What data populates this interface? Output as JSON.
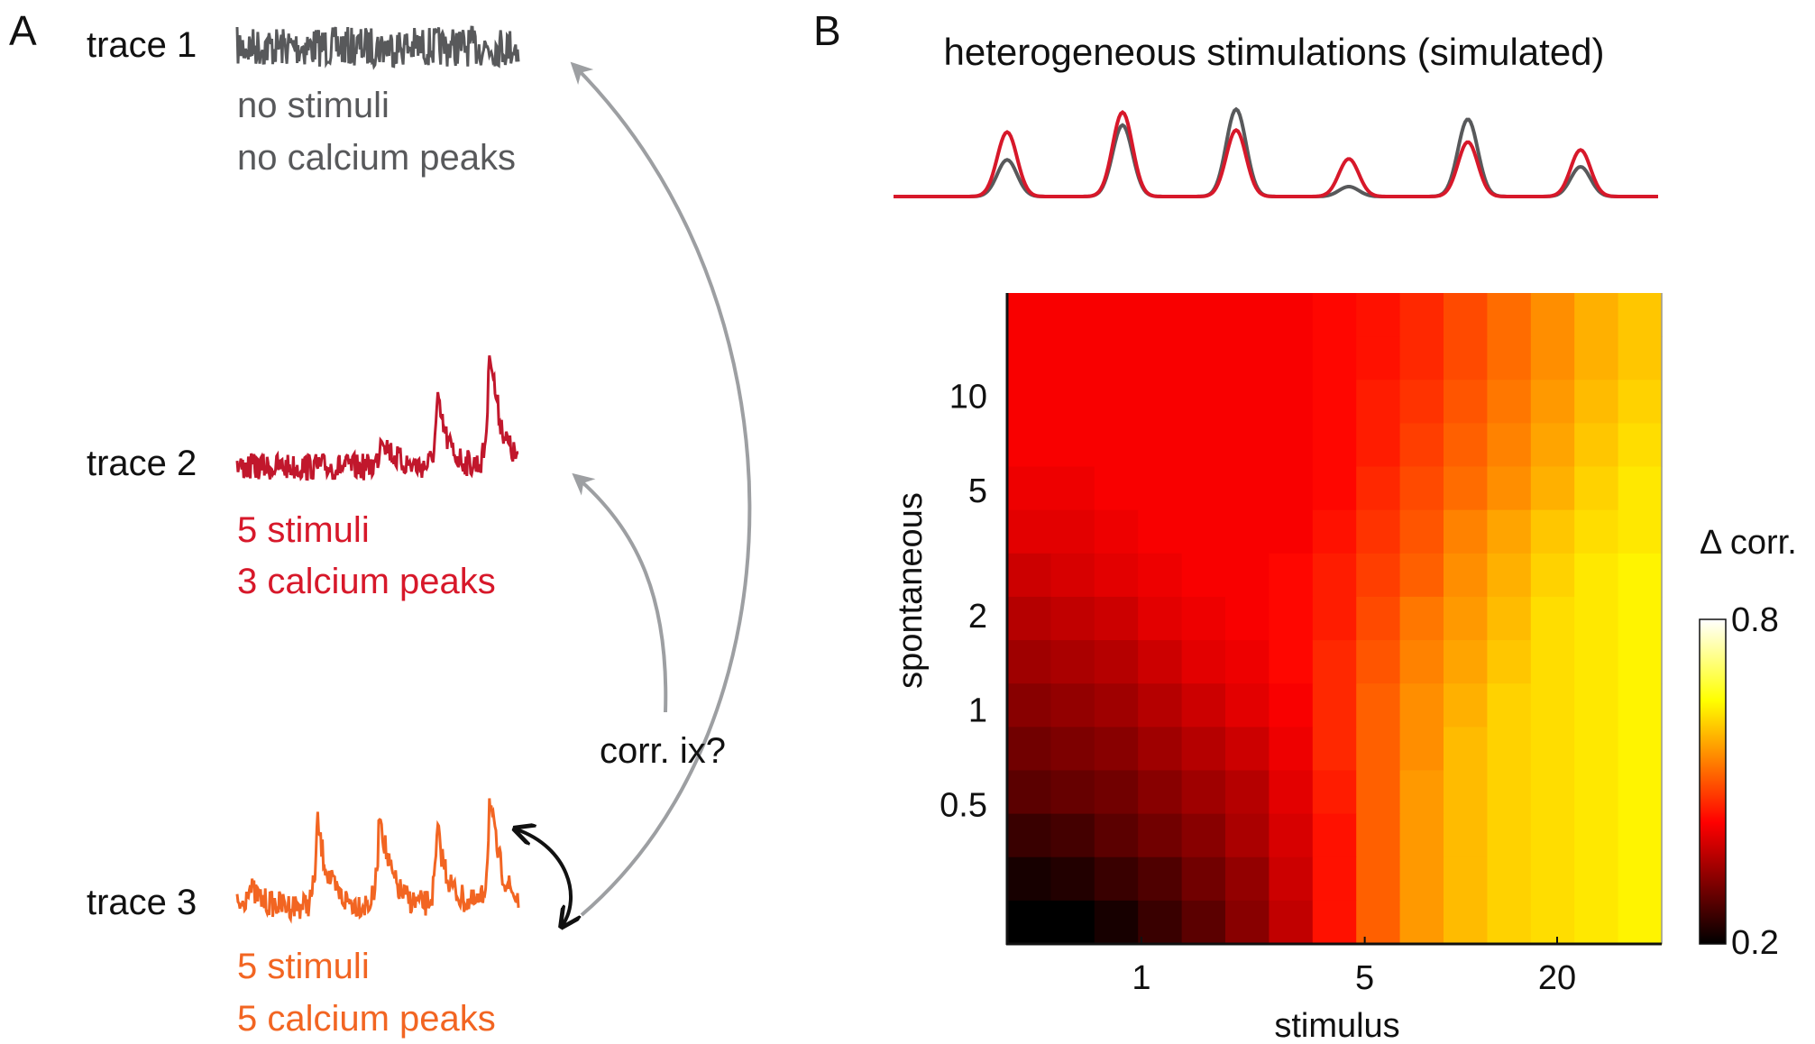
{
  "panel_a": {
    "label": "A",
    "traces": [
      {
        "label": "trace 1",
        "line1": "no stimuli",
        "line2": "no calcium peaks",
        "color": "#58595b"
      },
      {
        "label": "trace 2",
        "line1": "5 stimuli",
        "line2": "3 calcium peaks",
        "color": "#c1172c"
      },
      {
        "label": "trace 3",
        "line1": "5 stimuli",
        "line2": "5 calcium peaks",
        "color": "#f26522"
      }
    ],
    "question": "corr. ix?",
    "arrow_color": "#9d9fa2"
  },
  "panel_b": {
    "label": "B",
    "title": "heterogeneous stimulations (simulated)"
  },
  "chart_data": [
    {
      "type": "line",
      "title": "heterogeneous stimulations (simulated)",
      "series": [
        {
          "color": "#58595b",
          "peak_amplitudes": [
            0.37,
            0.72,
            0.88,
            0.1,
            0.78,
            0.3
          ]
        },
        {
          "color": "#d7182a",
          "peak_amplitudes": [
            0.65,
            0.85,
            0.67,
            0.38,
            0.55,
            0.47
          ]
        }
      ]
    },
    {
      "type": "heatmap",
      "xlabel": "stimulus",
      "ylabel": "spontaneous",
      "xscale": "log",
      "yscale": "log",
      "xlim": [
        0.38,
        42.5
      ],
      "ylim": [
        0.18,
        21.3
      ],
      "xticks": [
        1,
        5,
        20
      ],
      "xtick_labels": [
        "1",
        "5",
        "20"
      ],
      "yticks": [
        10,
        5,
        2,
        1,
        0.5
      ],
      "ytick_labels": [
        "10",
        "5",
        "2",
        "1",
        "0.5"
      ],
      "colormap": "hot",
      "colorbar": {
        "label": "Δ corr.",
        "min": 0.2,
        "max": 0.8,
        "min_label": "0.2",
        "max_label": "0.8"
      },
      "rows_top_to_bottom": [
        [
          0.42,
          0.42,
          0.42,
          0.42,
          0.42,
          0.42,
          0.42,
          0.43,
          0.44,
          0.46,
          0.49,
          0.52,
          0.55,
          0.58,
          0.6
        ],
        [
          0.42,
          0.42,
          0.42,
          0.42,
          0.42,
          0.42,
          0.42,
          0.43,
          0.44,
          0.46,
          0.49,
          0.52,
          0.55,
          0.58,
          0.6
        ],
        [
          0.42,
          0.42,
          0.42,
          0.42,
          0.42,
          0.42,
          0.42,
          0.43,
          0.45,
          0.47,
          0.5,
          0.53,
          0.56,
          0.59,
          0.61
        ],
        [
          0.42,
          0.42,
          0.42,
          0.42,
          0.42,
          0.42,
          0.42,
          0.43,
          0.45,
          0.48,
          0.51,
          0.54,
          0.57,
          0.6,
          0.62
        ],
        [
          0.41,
          0.41,
          0.42,
          0.42,
          0.42,
          0.42,
          0.42,
          0.43,
          0.46,
          0.49,
          0.52,
          0.55,
          0.58,
          0.61,
          0.63
        ],
        [
          0.4,
          0.4,
          0.41,
          0.42,
          0.42,
          0.42,
          0.42,
          0.44,
          0.47,
          0.5,
          0.54,
          0.57,
          0.6,
          0.62,
          0.63
        ],
        [
          0.38,
          0.39,
          0.4,
          0.41,
          0.42,
          0.42,
          0.43,
          0.45,
          0.48,
          0.51,
          0.55,
          0.58,
          0.61,
          0.63,
          0.64
        ],
        [
          0.36,
          0.37,
          0.38,
          0.4,
          0.41,
          0.42,
          0.43,
          0.45,
          0.49,
          0.53,
          0.56,
          0.59,
          0.62,
          0.63,
          0.64
        ],
        [
          0.34,
          0.35,
          0.36,
          0.38,
          0.4,
          0.41,
          0.43,
          0.46,
          0.5,
          0.54,
          0.57,
          0.6,
          0.62,
          0.63,
          0.64
        ],
        [
          0.32,
          0.33,
          0.34,
          0.36,
          0.38,
          0.4,
          0.42,
          0.46,
          0.51,
          0.55,
          0.58,
          0.61,
          0.62,
          0.63,
          0.64
        ],
        [
          0.3,
          0.31,
          0.32,
          0.34,
          0.36,
          0.38,
          0.41,
          0.46,
          0.51,
          0.55,
          0.59,
          0.61,
          0.62,
          0.63,
          0.64
        ],
        [
          0.28,
          0.29,
          0.3,
          0.32,
          0.34,
          0.36,
          0.4,
          0.45,
          0.51,
          0.56,
          0.59,
          0.61,
          0.62,
          0.63,
          0.64
        ],
        [
          0.25,
          0.26,
          0.28,
          0.3,
          0.32,
          0.35,
          0.39,
          0.44,
          0.51,
          0.56,
          0.59,
          0.61,
          0.62,
          0.63,
          0.64
        ],
        [
          0.22,
          0.23,
          0.25,
          0.27,
          0.3,
          0.33,
          0.38,
          0.44,
          0.51,
          0.56,
          0.59,
          0.61,
          0.62,
          0.63,
          0.64
        ],
        [
          0.2,
          0.2,
          0.22,
          0.25,
          0.28,
          0.32,
          0.37,
          0.44,
          0.51,
          0.56,
          0.59,
          0.61,
          0.62,
          0.63,
          0.64
        ]
      ]
    }
  ]
}
